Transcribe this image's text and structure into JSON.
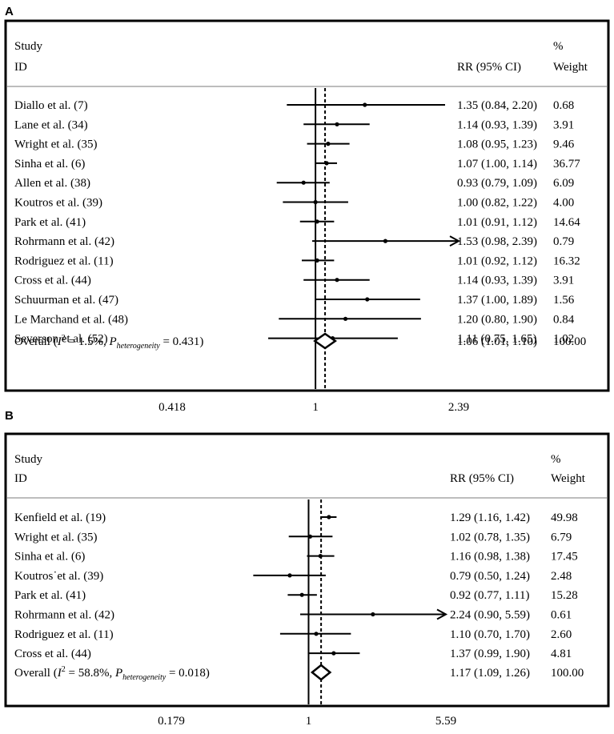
{
  "chart_data": [
    {
      "type": "forest",
      "panel_label": "A",
      "headers": {
        "study": "Study",
        "id": "ID",
        "rr": "RR (95% CI)",
        "pct": "%",
        "weight": "Weight"
      },
      "null_value": 1,
      "overall_estimate": 1.06,
      "x_ticks": [
        {
          "value": 0.418,
          "label": "0.418"
        },
        {
          "value": 1,
          "label": "1"
        },
        {
          "value": 2.39,
          "label": "2.39"
        }
      ],
      "studies": [
        {
          "study": "Diallo et al. (7)",
          "rr": 1.35,
          "lo": 0.84,
          "hi": 2.2,
          "ci": "1.35 (0.84, 2.20)",
          "weight": "0.68"
        },
        {
          "study": "Lane et al. (34)",
          "rr": 1.14,
          "lo": 0.93,
          "hi": 1.39,
          "ci": "1.14 (0.93, 1.39)",
          "weight": "3.91"
        },
        {
          "study": "Wright et al. (35)",
          "rr": 1.08,
          "lo": 0.95,
          "hi": 1.23,
          "ci": "1.08 (0.95, 1.23)",
          "weight": "9.46"
        },
        {
          "study": "Sinha et al. (6)",
          "rr": 1.07,
          "lo": 1.0,
          "hi": 1.14,
          "ci": "1.07 (1.00, 1.14)",
          "weight": "36.77"
        },
        {
          "study": "Allen et al. (38)",
          "rr": 0.93,
          "lo": 0.79,
          "hi": 1.09,
          "ci": "0.93 (0.79, 1.09)",
          "weight": "6.09"
        },
        {
          "study": "Koutros et al. (39)",
          "rr": 1.0,
          "lo": 0.82,
          "hi": 1.22,
          "ci": "1.00 (0.82, 1.22)",
          "weight": "4.00"
        },
        {
          "study": "Park et al. (41)",
          "rr": 1.01,
          "lo": 0.91,
          "hi": 1.12,
          "ci": "1.01 (0.91, 1.12)",
          "weight": "14.64"
        },
        {
          "study": "Rohrmann et al. (42)",
          "rr": 1.53,
          "lo": 0.98,
          "hi": 2.39,
          "ci": "1.53 (0.98, 2.39)",
          "weight": "0.79",
          "arrow": true
        },
        {
          "study": "Rodriguez et al. (11)",
          "rr": 1.01,
          "lo": 0.92,
          "hi": 1.12,
          "ci": "1.01 (0.92, 1.12)",
          "weight": "16.32"
        },
        {
          "study": "Cross et al. (44)",
          "rr": 1.14,
          "lo": 0.93,
          "hi": 1.39,
          "ci": "1.14 (0.93, 1.39)",
          "weight": "3.91"
        },
        {
          "study": "Schuurman et al. (47)",
          "rr": 1.37,
          "lo": 1.0,
          "hi": 1.89,
          "ci": "1.37 (1.00, 1.89)",
          "weight": "1.56"
        },
        {
          "study": "Le Marchand et al. (48)",
          "rr": 1.2,
          "lo": 0.8,
          "hi": 1.9,
          "ci": "1.20 (0.80, 1.90)",
          "weight": "0.84"
        },
        {
          "study": "Severson et al. (52)",
          "rr": 1.11,
          "lo": 0.75,
          "hi": 1.65,
          "ci": "1.11 (0.75, 1.65)",
          "weight": "1.02"
        }
      ],
      "overall": {
        "prefix": "Overall  (",
        "i2_symbol": "I",
        "i2_sup": "2",
        "i2_value": " = 1.5%, ",
        "p_symbol": "P",
        "p_sub": "heterogeneity",
        "p_value": " = 0.431)",
        "rr": 1.06,
        "lo": 1.01,
        "hi": 1.1,
        "ci": "1.06 (1.01, 1.10)",
        "weight": "100.00"
      }
    },
    {
      "type": "forest",
      "panel_label": "B",
      "headers": {
        "study": "Study",
        "id": "ID",
        "rr": "RR (95% CI)",
        "pct": "%",
        "weight": "Weight"
      },
      "null_value": 1,
      "overall_estimate": 1.17,
      "x_ticks": [
        {
          "value": 0.179,
          "label": "0.179"
        },
        {
          "value": 1,
          "label": "1"
        },
        {
          "value": 5.59,
          "label": "5.59"
        }
      ],
      "studies": [
        {
          "study": "Kenfield et al. (19)",
          "rr": 1.29,
          "lo": 1.16,
          "hi": 1.42,
          "ci": "1.29 (1.16, 1.42)",
          "weight": "49.98"
        },
        {
          "study": "Wright et al. (35)",
          "rr": 1.02,
          "lo": 0.78,
          "hi": 1.35,
          "ci": "1.02 (0.78, 1.35)",
          "weight": "6.79"
        },
        {
          "study": "Sinha et al. (6)",
          "rr": 1.16,
          "lo": 0.98,
          "hi": 1.38,
          "ci": "1.16 (0.98, 1.38)",
          "weight": "17.45"
        },
        {
          "study": "Koutros˙et al. (39)",
          "rr": 0.79,
          "lo": 0.5,
          "hi": 1.24,
          "ci": "0.79 (0.50, 1.24)",
          "weight": "2.48"
        },
        {
          "study": "Park et al. (41)",
          "rr": 0.92,
          "lo": 0.77,
          "hi": 1.11,
          "ci": "0.92 (0.77, 1.11)",
          "weight": "15.28"
        },
        {
          "study": "Rohrmann et al. (42)",
          "rr": 2.24,
          "lo": 0.9,
          "hi": 5.59,
          "ci": "2.24 (0.90, 5.59)",
          "weight": "0.61",
          "arrow": true
        },
        {
          "study": "Rodriguez et al. (11)",
          "rr": 1.1,
          "lo": 0.7,
          "hi": 1.7,
          "ci": "1.10 (0.70, 1.70)",
          "weight": "2.60"
        },
        {
          "study": "Cross et al. (44)",
          "rr": 1.37,
          "lo": 0.99,
          "hi": 1.9,
          "ci": "1.37 (0.99, 1.90)",
          "weight": "4.81"
        }
      ],
      "overall": {
        "prefix": "Overall  (",
        "i2_symbol": "I",
        "i2_sup": "2",
        "i2_value": " = 58.8%, ",
        "p_symbol": "P",
        "p_sub": "heterogeneity",
        "p_value": " = 0.018)",
        "rr": 1.17,
        "lo": 1.09,
        "hi": 1.26,
        "ci": "1.17 (1.09, 1.26)",
        "weight": "100.00"
      }
    }
  ]
}
